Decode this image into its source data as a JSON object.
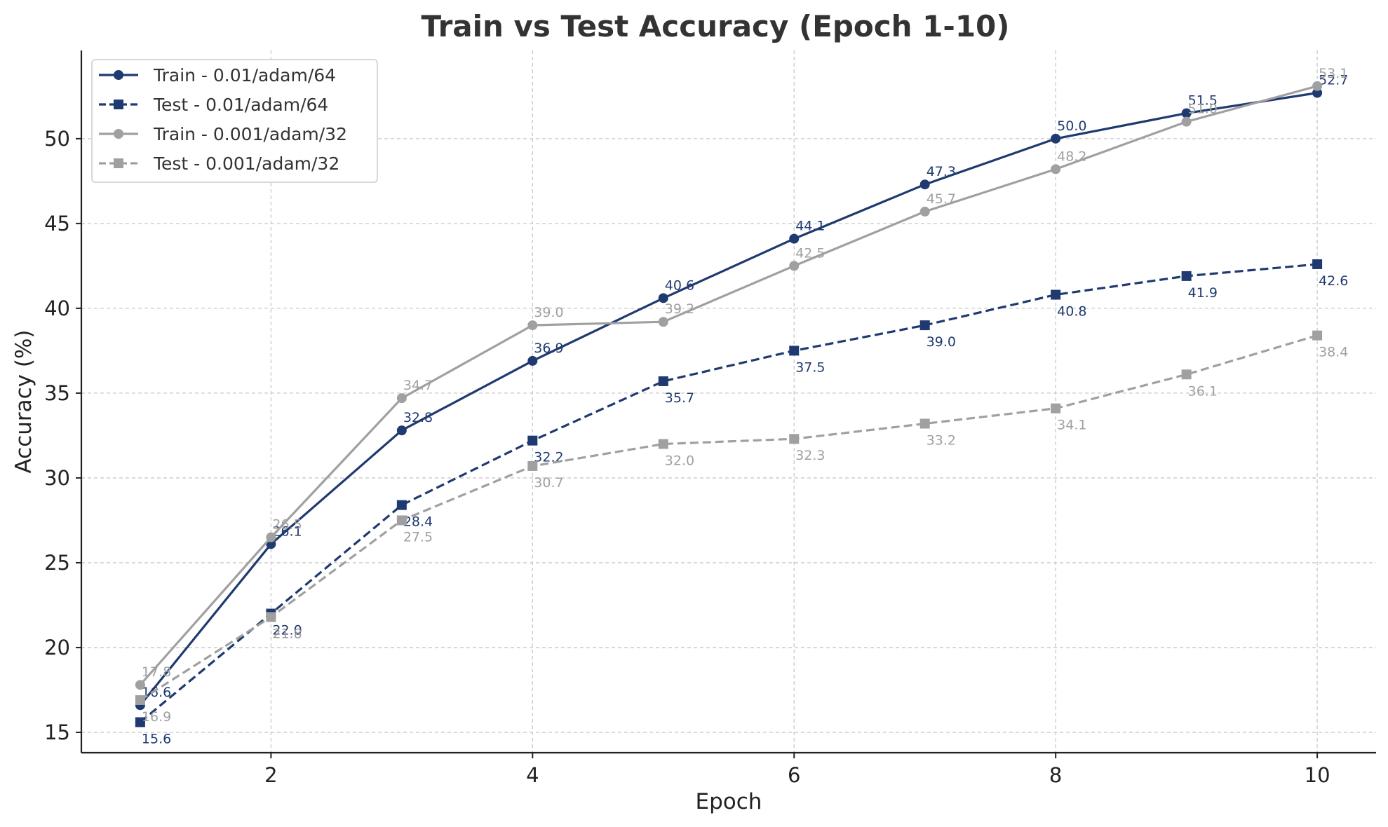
{
  "chart_data": {
    "type": "line",
    "title": "Train vs Test Accuracy (Epoch 1-10)",
    "xlabel": "Epoch",
    "ylabel": "Accuracy (%)",
    "x": [
      1,
      2,
      3,
      4,
      5,
      6,
      7,
      8,
      9,
      10
    ],
    "xlim": [
      0.55,
      10.45
    ],
    "ylim": [
      13.8,
      55.2
    ],
    "xticks": [
      2,
      4,
      6,
      8,
      10
    ],
    "yticks": [
      15,
      20,
      25,
      30,
      35,
      40,
      45,
      50
    ],
    "grid": true,
    "legend_position": "top-left",
    "series": [
      {
        "name": "Train - 0.01/adam/64",
        "values": [
          16.6,
          26.1,
          32.8,
          36.9,
          40.6,
          44.1,
          47.3,
          50.0,
          51.5,
          52.7
        ],
        "labels": [
          "16.6",
          "26.1",
          "32.8",
          "36.9",
          "40.6",
          "44.1",
          "47.3",
          "50.0",
          "51.5",
          "52.7"
        ],
        "color": "#1f3a70",
        "linestyle": "solid",
        "marker": "circle",
        "label_position": "above"
      },
      {
        "name": "Test - 0.01/adam/64",
        "values": [
          15.6,
          22.0,
          28.4,
          32.2,
          35.7,
          37.5,
          39.0,
          40.8,
          41.9,
          42.6
        ],
        "labels": [
          "15.6",
          "22.0",
          "28.4",
          "32.2",
          "35.7",
          "37.5",
          "39.0",
          "40.8",
          "41.9",
          "42.6"
        ],
        "color": "#1f3a70",
        "linestyle": "dashed",
        "marker": "square",
        "label_position": "below"
      },
      {
        "name": "Train - 0.001/adam/32",
        "values": [
          17.8,
          26.5,
          34.7,
          39.0,
          39.2,
          42.5,
          45.7,
          48.2,
          51.0,
          53.1
        ],
        "labels": [
          "17.8",
          "26.5",
          "34.7",
          "39.0",
          "39.2",
          "42.5",
          "45.7",
          "48.2",
          "51.0",
          "53.1"
        ],
        "color": "#a0a0a0",
        "linestyle": "solid",
        "marker": "circle",
        "label_position": "above"
      },
      {
        "name": "Test - 0.001/adam/32",
        "values": [
          16.9,
          21.8,
          27.5,
          30.7,
          32.0,
          32.3,
          33.2,
          34.1,
          36.1,
          38.4
        ],
        "labels": [
          "16.9",
          "21.8",
          "27.5",
          "30.7",
          "32.0",
          "32.3",
          "33.2",
          "34.1",
          "36.1",
          "38.4"
        ],
        "color": "#a0a0a0",
        "linestyle": "dashed",
        "marker": "square",
        "label_position": "below"
      }
    ]
  }
}
